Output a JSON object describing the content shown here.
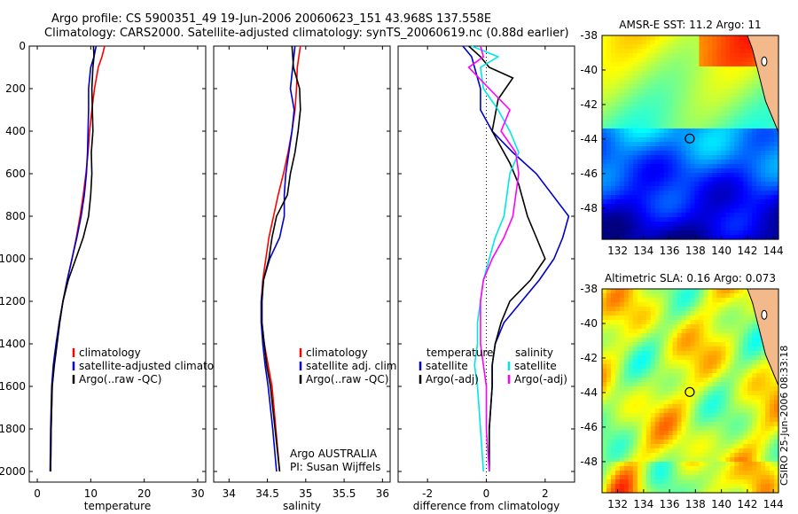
{
  "header": {
    "line1": "Argo profile: CS 5900351_49 19-Jun-2006 20060623_151 43.968S 137.558E",
    "line2": "Climatology: CARS2000. Satellite-adjusted climatology: synTS_20060619.nc (0.88d earlier)"
  },
  "colors": {
    "red": "#ff0000",
    "blue": "#0000cc",
    "black": "#000000",
    "cyan": "#00e5e5",
    "magenta": "#ff00ff"
  },
  "chart_data": [
    {
      "type": "line",
      "xlabel": "temperature",
      "xlim": [
        -1.5,
        31.5
      ],
      "ylim": [
        0,
        2050
      ],
      "y_inverted": true,
      "xticks": [
        0,
        10,
        20,
        30
      ],
      "yticks": [
        0,
        200,
        400,
        600,
        800,
        1000,
        1200,
        1400,
        1600,
        1800,
        2000
      ],
      "series": [
        {
          "name": "climatology",
          "color": "red",
          "x": [
            12.6,
            12.1,
            11.4,
            10.7,
            10.2,
            9.8,
            9.5,
            9.1,
            8.6,
            8.0,
            7.3,
            6.5,
            5.6,
            4.8,
            4.1,
            3.6,
            3.1,
            2.8,
            2.6,
            2.5
          ],
          "y": [
            0,
            50,
            100,
            200,
            300,
            400,
            500,
            600,
            700,
            800,
            900,
            1000,
            1100,
            1200,
            1300,
            1400,
            1500,
            1600,
            1800,
            2000
          ]
        },
        {
          "name": "satellite-adjusted climatology",
          "color": "blue",
          "x": [
            11.0,
            10.6,
            10.0,
            9.6,
            9.6,
            9.5,
            9.4,
            9.2,
            8.8,
            8.2,
            7.4,
            6.5,
            5.6,
            4.8,
            4.1,
            3.5,
            3.0,
            2.7,
            2.5,
            2.4
          ],
          "y": [
            0,
            50,
            100,
            200,
            300,
            400,
            500,
            600,
            700,
            800,
            900,
            1000,
            1100,
            1200,
            1300,
            1400,
            1500,
            1600,
            1800,
            2000
          ]
        },
        {
          "name": "Argo(..raw -QC)",
          "color": "black",
          "x": [
            10.5,
            10.6,
            10.4,
            10.2,
            10.3,
            10.4,
            10.1,
            10.2,
            10.0,
            9.6,
            8.6,
            7.2,
            5.8,
            4.8,
            4.2,
            3.7,
            3.2,
            2.8,
            2.6,
            2.5
          ],
          "y": [
            0,
            50,
            100,
            200,
            300,
            400,
            500,
            600,
            700,
            800,
            900,
            1000,
            1100,
            1200,
            1300,
            1400,
            1500,
            1600,
            1800,
            2000
          ]
        }
      ],
      "legend": {
        "position": "lower-right",
        "entries": [
          "climatology",
          "satellite-adjusted climatology",
          "Argo(..raw -QC)"
        ]
      }
    },
    {
      "type": "line",
      "xlabel": "salinity",
      "xlim": [
        33.8,
        36.1
      ],
      "ylim": [
        0,
        2050
      ],
      "y_inverted": true,
      "xticks": [
        34,
        34.5,
        35,
        35.5,
        36
      ],
      "xticklabels": [
        "34",
        "34.5",
        "35",
        "35.5",
        "36"
      ],
      "series": [
        {
          "name": "climatology",
          "color": "red",
          "x": [
            34.93,
            34.89,
            34.88,
            34.86,
            34.82,
            34.77,
            34.71,
            34.64,
            34.58,
            34.52,
            34.48,
            34.44,
            34.42,
            34.42,
            34.46,
            34.51,
            34.56,
            34.61,
            34.66
          ],
          "y": [
            0,
            100,
            200,
            300,
            400,
            500,
            600,
            700,
            800,
            900,
            1000,
            1100,
            1200,
            1300,
            1400,
            1500,
            1600,
            1800,
            2000
          ]
        },
        {
          "name": "satellite adj. clim.",
          "color": "blue",
          "x": [
            34.86,
            34.83,
            34.8,
            34.85,
            34.82,
            34.78,
            34.74,
            34.72,
            34.72,
            34.66,
            34.53,
            34.45,
            34.42,
            34.42,
            34.44,
            34.47,
            34.51,
            34.57,
            34.62
          ],
          "y": [
            0,
            100,
            200,
            300,
            400,
            500,
            600,
            700,
            800,
            900,
            1000,
            1100,
            1200,
            1300,
            1400,
            1500,
            1600,
            1800,
            2000
          ]
        },
        {
          "name": "Argo(..raw -QC)",
          "color": "black",
          "x": [
            34.82,
            34.84,
            34.92,
            34.93,
            34.9,
            34.86,
            34.8,
            34.76,
            34.62,
            34.56,
            34.52,
            34.45,
            34.43,
            34.43,
            34.46,
            34.49,
            34.54,
            34.6,
            34.66
          ],
          "y": [
            0,
            100,
            200,
            300,
            400,
            500,
            600,
            700,
            800,
            900,
            1000,
            1100,
            1200,
            1300,
            1400,
            1500,
            1600,
            1800,
            2000
          ]
        }
      ],
      "legend": {
        "position": "lower-right",
        "entries": [
          "climatology",
          "satellite adj. clim.",
          "Argo(..raw -QC)"
        ]
      },
      "annotations": [
        "Argo AUSTRALIA",
        "PI: Susan Wijffels"
      ]
    },
    {
      "type": "line",
      "xlabel": "difference from climatology",
      "xlim": [
        -3.0,
        3.0
      ],
      "ylim": [
        0,
        2050
      ],
      "y_inverted": true,
      "xticks": [
        -2,
        0,
        2
      ],
      "zero_line": "dotted",
      "series": [
        {
          "name": "satellite",
          "group": "temperature",
          "color": "blue",
          "x": [
            -0.8,
            -0.5,
            -0.4,
            -0.2,
            -0.2,
            0.2,
            0.9,
            1.7,
            2.8,
            2.6,
            2.3,
            1.8,
            1.2,
            0.6,
            0.3,
            0.2,
            0.2,
            0.1,
            0.1
          ],
          "y": [
            0,
            50,
            100,
            200,
            300,
            400,
            500,
            600,
            800,
            900,
            1000,
            1100,
            1200,
            1300,
            1400,
            1500,
            1600,
            1800,
            2000
          ]
        },
        {
          "name": "Argo(-adj)",
          "group": "temperature",
          "color": "black",
          "x": [
            -0.6,
            -0.2,
            0.1,
            0.9,
            0.4,
            0.2,
            0.8,
            1.1,
            1.4,
            1.7,
            2.0,
            1.5,
            0.8,
            0.5,
            0.3,
            0.2,
            0.2,
            0.1,
            0.1
          ],
          "y": [
            0,
            50,
            100,
            150,
            250,
            400,
            550,
            650,
            800,
            900,
            1000,
            1100,
            1200,
            1300,
            1400,
            1500,
            1600,
            1800,
            2000
          ]
        },
        {
          "name": "satellite",
          "group": "salinity",
          "color": "cyan",
          "x": [
            -0.5,
            0.4,
            -0.2,
            -0.1,
            0.4,
            0.8,
            1.1,
            0.8,
            0.6,
            0.3,
            0.1,
            -0.1,
            -0.2,
            -0.3,
            -0.3,
            -0.4,
            -0.3,
            -0.2,
            -0.1
          ],
          "y": [
            0,
            50,
            100,
            200,
            300,
            400,
            500,
            600,
            800,
            900,
            1000,
            1100,
            1200,
            1300,
            1400,
            1500,
            1600,
            1800,
            2000
          ]
        },
        {
          "name": "Argo(-adj)",
          "group": "salinity",
          "color": "magenta",
          "x": [
            -0.2,
            -0.1,
            -0.6,
            0.1,
            0.8,
            0.5,
            1.0,
            1.1,
            0.9,
            0.6,
            0.2,
            -0.1,
            -0.2,
            -0.2,
            -0.2,
            -0.1,
            0.0,
            0.0,
            0.1
          ],
          "y": [
            0,
            50,
            100,
            200,
            300,
            400,
            500,
            600,
            800,
            900,
            1000,
            1100,
            1200,
            1300,
            1400,
            1500,
            1600,
            1800,
            2000
          ]
        }
      ],
      "legend": {
        "position": "lower-right",
        "headers": [
          "temperature",
          "salinity"
        ],
        "entries": [
          "satellite",
          "Argo(-adj)",
          "satellite",
          "Argo(-adj)"
        ]
      }
    },
    {
      "type": "heatmap",
      "title": "AMSR-E SST: 11.2 Argo: 11",
      "xlim": [
        130.8,
        144.4
      ],
      "ylim": [
        -49.8,
        -38
      ],
      "xticks": [
        132,
        134,
        136,
        138,
        140,
        142,
        144
      ],
      "yticks": [
        -38,
        -40,
        -42,
        -44,
        -46,
        -48
      ],
      "marker": {
        "lon": 137.558,
        "lat": -43.968
      },
      "colormap": "jet"
    },
    {
      "type": "heatmap",
      "title": "Altimetric SLA: 0.16 Argo: 0.073",
      "xlim": [
        130.8,
        144.4
      ],
      "ylim": [
        -49.8,
        -38
      ],
      "xticks": [
        132,
        134,
        136,
        138,
        140,
        142,
        144
      ],
      "yticks": [
        -38,
        -40,
        -42,
        -44,
        -46,
        -48
      ],
      "marker": {
        "lon": 137.558,
        "lat": -43.968
      },
      "colormap": "jet"
    }
  ],
  "footer": {
    "stamp": "CSIRO 25-Jun-2006 08:33:18"
  }
}
